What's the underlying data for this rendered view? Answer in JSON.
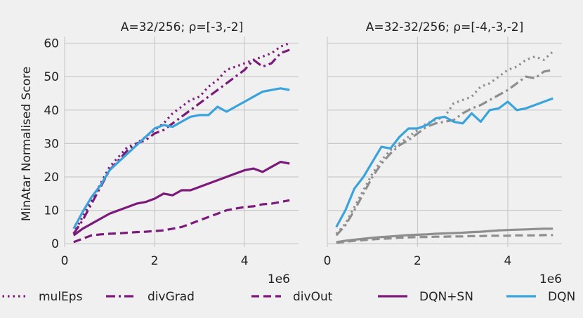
{
  "colors": {
    "purple": "#7b1a7b",
    "blue": "#3aa3dc",
    "grey": "#8e8e8e",
    "background": "#f0f0f0",
    "grid": "#cbcbcb"
  },
  "y_axis_label": "MinAtar Normalised Score",
  "legend": [
    {
      "label": "mulEps",
      "style": "dotted"
    },
    {
      "label": "divGrad",
      "style": "dashdot"
    },
    {
      "label": "divOut",
      "style": "dashed"
    },
    {
      "label": "DQN+SN",
      "style": "solid"
    },
    {
      "label": "DQN",
      "style": "solid",
      "color": "blue"
    }
  ],
  "chart_data": [
    {
      "type": "line",
      "title": "A=32/256; ρ=[-3,-2]",
      "xlabel": "",
      "x_offset_label": "1e6",
      "ylabel": "MinAtar Normalised Score",
      "xlim": [
        0,
        5.2
      ],
      "ylim": [
        -1,
        62
      ],
      "xticks": [
        0,
        2,
        4
      ],
      "yticks": [
        0,
        10,
        20,
        30,
        40,
        50,
        60
      ],
      "x": [
        0.2,
        0.4,
        0.6,
        0.8,
        1.0,
        1.2,
        1.4,
        1.6,
        1.8,
        2.0,
        2.2,
        2.4,
        2.6,
        2.8,
        3.0,
        3.2,
        3.4,
        3.6,
        3.8,
        4.0,
        4.2,
        4.4,
        4.6,
        4.8,
        5.0
      ],
      "series": [
        {
          "name": "mulEps",
          "style": "dotted",
          "color": "purple",
          "values": [
            3,
            8,
            13,
            18,
            23,
            26,
            29,
            30,
            32,
            34,
            36,
            39,
            41,
            43,
            44,
            47,
            49,
            52,
            53,
            54,
            55,
            56,
            57,
            59,
            60
          ]
        },
        {
          "name": "divGrad",
          "style": "dashdot",
          "color": "purple",
          "values": [
            3,
            7,
            12,
            17,
            22,
            25,
            28,
            30,
            31,
            33,
            34,
            36,
            38,
            40,
            42,
            44,
            46,
            48,
            50,
            52,
            55,
            53,
            54,
            57,
            58
          ]
        },
        {
          "name": "divOut",
          "style": "dashed",
          "color": "purple",
          "values": [
            0.5,
            1.5,
            2.5,
            2.8,
            3.0,
            3.1,
            3.3,
            3.5,
            3.6,
            3.8,
            4.0,
            4.5,
            5.0,
            6.0,
            7.0,
            8.0,
            9.0,
            10.0,
            10.5,
            11.0,
            11.2,
            11.8,
            12.0,
            12.5,
            13.0
          ]
        },
        {
          "name": "DQN+SN",
          "style": "solid",
          "color": "purple",
          "values": [
            2.5,
            4.5,
            6.0,
            7.5,
            9.0,
            10.0,
            11.0,
            12.0,
            12.5,
            13.5,
            15.0,
            14.5,
            16.0,
            16.0,
            17.0,
            18.0,
            19.0,
            20.0,
            21.0,
            22.0,
            22.5,
            21.5,
            23.0,
            24.5,
            24.0
          ]
        },
        {
          "name": "DQN",
          "style": "solid",
          "color": "blue",
          "values": [
            4.5,
            9.5,
            14.0,
            17.5,
            22.0,
            24.5,
            27.0,
            29.5,
            32.0,
            34.5,
            35.5,
            35.0,
            36.5,
            38.0,
            38.5,
            38.5,
            41.0,
            39.5,
            41.0,
            42.5,
            44.0,
            45.5,
            46.0,
            46.5,
            46.0
          ]
        }
      ]
    },
    {
      "type": "line",
      "title": "A=32-32/256; ρ=[-4,-3,-2]",
      "xlabel": "",
      "x_offset_label": "1e6",
      "ylabel": "",
      "xlim": [
        0,
        5.2
      ],
      "ylim": [
        -1,
        62
      ],
      "xticks": [
        0,
        2,
        4
      ],
      "yticks": [
        0,
        10,
        20,
        30,
        40,
        50,
        60
      ],
      "x": [
        0.2,
        0.4,
        0.6,
        0.8,
        1.0,
        1.2,
        1.4,
        1.6,
        1.8,
        2.0,
        2.2,
        2.4,
        2.6,
        2.8,
        3.0,
        3.2,
        3.4,
        3.6,
        3.8,
        4.0,
        4.2,
        4.4,
        4.6,
        4.8,
        5.0
      ],
      "series": [
        {
          "name": "mulEps",
          "style": "dotted",
          "color": "grey",
          "values": [
            3,
            6,
            11,
            16,
            21,
            25,
            28,
            30,
            32,
            34,
            36,
            37,
            38,
            42,
            43,
            44,
            47,
            48,
            50,
            52,
            53,
            55,
            56,
            55,
            57.5
          ]
        },
        {
          "name": "divGrad",
          "style": "dashdot",
          "color": "grey",
          "values": [
            2.5,
            5.5,
            10.0,
            15.0,
            20.0,
            24.0,
            27.0,
            29.5,
            31.0,
            33.0,
            35.0,
            36.0,
            36.5,
            37.0,
            39.0,
            40.5,
            41.5,
            43.0,
            44.5,
            46.0,
            48.0,
            50.0,
            49.5,
            51.5,
            52.0
          ]
        },
        {
          "name": "divOut",
          "style": "dashed",
          "color": "grey",
          "values": [
            0.3,
            0.6,
            0.9,
            1.1,
            1.3,
            1.5,
            1.6,
            1.8,
            1.9,
            2.0,
            2.0,
            2.1,
            2.1,
            2.2,
            2.2,
            2.3,
            2.3,
            2.4,
            2.4,
            2.4,
            2.5,
            2.5,
            2.5,
            2.6,
            2.6
          ]
        },
        {
          "name": "DQN+SN",
          "style": "solid",
          "color": "grey",
          "values": [
            0.5,
            0.9,
            1.2,
            1.5,
            1.8,
            2.0,
            2.2,
            2.4,
            2.6,
            2.7,
            2.8,
            3.0,
            3.1,
            3.2,
            3.3,
            3.5,
            3.6,
            3.8,
            4.0,
            4.1,
            4.2,
            4.3,
            4.4,
            4.5,
            4.5
          ]
        },
        {
          "name": "DQN",
          "style": "solid",
          "color": "blue",
          "values": [
            5,
            10,
            16.5,
            20,
            24.5,
            29,
            28.5,
            32,
            34.5,
            34.5,
            35.5,
            37.5,
            38,
            36.5,
            36,
            39,
            36.5,
            40,
            40.5,
            42.5,
            40,
            40.5,
            41.5,
            42.5,
            43.5
          ]
        }
      ]
    }
  ]
}
